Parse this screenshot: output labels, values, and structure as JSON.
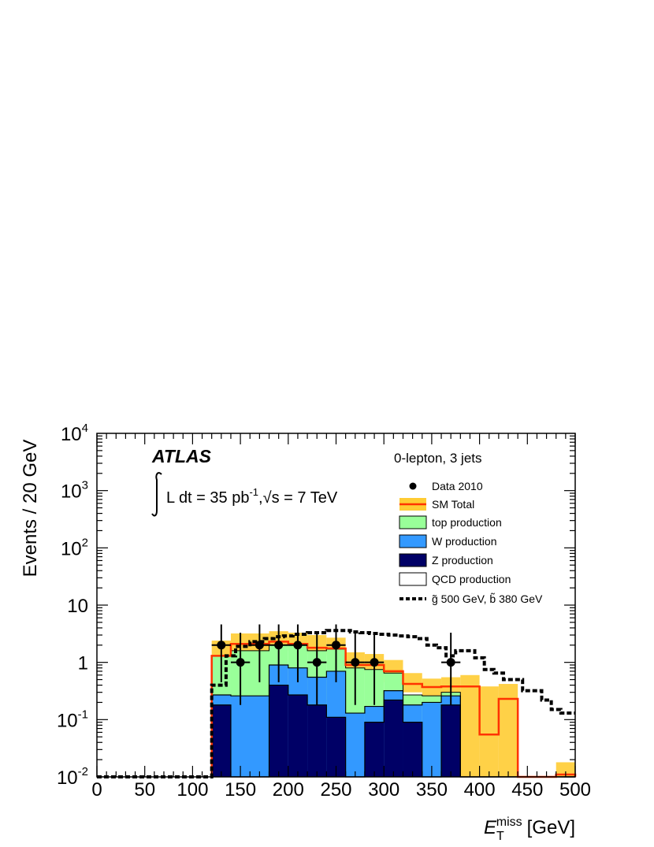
{
  "chart_data": {
    "type": "histogram",
    "x_axis": {
      "label_main": "E",
      "label_sub": "T",
      "label_sup": "miss",
      "label_unit": "[GeV]",
      "range": [
        0,
        500
      ],
      "tick_labels": [
        "0",
        "50",
        "100",
        "150",
        "200",
        "250",
        "300",
        "350",
        "400",
        "450",
        "500"
      ]
    },
    "y_axis": {
      "label": "Events / 20 GeV",
      "scale": "log",
      "range": [
        0.01,
        10000
      ],
      "tick_labels": [
        {
          "value": 0.01,
          "base": "10",
          "sup": "-2"
        },
        {
          "value": 0.1,
          "base": "10",
          "sup": "-1"
        },
        {
          "value": 1,
          "base": "1",
          "sup": ""
        },
        {
          "value": 10,
          "base": "10",
          "sup": ""
        },
        {
          "value": 100,
          "base": "10",
          "sup": "2"
        },
        {
          "value": 1000,
          "base": "10",
          "sup": "3"
        },
        {
          "value": 10000,
          "base": "10",
          "sup": "4"
        }
      ]
    },
    "annotations": {
      "experiment": "ATLAS",
      "lumi_text": "L dt = 35 pb",
      "lumi_sup": "-1",
      "energy_text": "s = 7 TeV",
      "channel": "0-lepton, 3 jets"
    },
    "legend": {
      "placement": "top-right",
      "entries": [
        {
          "key": "data",
          "label": "Data 2010"
        },
        {
          "key": "sm",
          "label": "SM Total"
        },
        {
          "key": "top",
          "label": "top production"
        },
        {
          "key": "w",
          "label": "W production"
        },
        {
          "key": "z",
          "label": "Z production"
        },
        {
          "key": "qcd",
          "label": "QCD production"
        },
        {
          "key": "signal",
          "label": "g̃ 500 GeV, b̃ 380 GeV"
        }
      ]
    },
    "bin_width": 20,
    "bin_edges": [
      120,
      140,
      180,
      200,
      220,
      240,
      260,
      280,
      300,
      320,
      340,
      360,
      380,
      400,
      420,
      440,
      480,
      500
    ],
    "series": [
      {
        "name": "Z production",
        "key": "z",
        "color": "#000066",
        "values": [
          0.18,
          0.01,
          0.4,
          0.27,
          0.18,
          0.11,
          0.01,
          0.09,
          0.22,
          0.09,
          0.01,
          0.18,
          0.01,
          0.01,
          0.01,
          0.01,
          0.01
        ]
      },
      {
        "name": "W production",
        "key": "w",
        "color": "#3399ff",
        "values": [
          0.27,
          0.26,
          0.9,
          0.8,
          0.55,
          0.7,
          0.13,
          0.17,
          0.32,
          0.18,
          0.2,
          0.26,
          0.01,
          0.01,
          0.01,
          0.01,
          0.01
        ]
      },
      {
        "name": "top production",
        "key": "top",
        "color": "#99ff99",
        "values": [
          1.3,
          1.6,
          2.0,
          2.0,
          1.6,
          1.7,
          0.8,
          0.75,
          0.65,
          0.27,
          0.26,
          0.3,
          0.01,
          0.01,
          0.01,
          0.01,
          0.01
        ]
      },
      {
        "name": "SM Total",
        "key": "sm",
        "color": "#ff3300",
        "values": [
          1.3,
          2.1,
          2.3,
          2.1,
          1.8,
          1.75,
          0.9,
          0.9,
          0.7,
          0.42,
          0.37,
          0.38,
          0.38,
          0.055,
          0.23,
          0.01,
          0.011
        ],
        "band_low": [
          1.0,
          1.6,
          1.8,
          1.6,
          1.4,
          1.3,
          0.65,
          0.6,
          0.45,
          0.3,
          0.26,
          0.28,
          0.01,
          0.01,
          0.01,
          0.01,
          0.01
        ],
        "band_high": [
          2.4,
          3.2,
          3.5,
          3.3,
          3.0,
          2.7,
          1.5,
          1.4,
          1.1,
          0.65,
          0.52,
          0.55,
          0.6,
          0.38,
          0.42,
          0.01,
          0.018
        ]
      },
      {
        "name": "g̃ 500 GeV, b̃ 380 GeV",
        "key": "signal",
        "color": "#000000",
        "edges": [
          0,
          120,
          125,
          135,
          145,
          160,
          175,
          185,
          195,
          205,
          220,
          240,
          255,
          265,
          275,
          285,
          295,
          305,
          315,
          325,
          335,
          345,
          355,
          365,
          375,
          385,
          395,
          405,
          415,
          425,
          435,
          445,
          455,
          465,
          475,
          485,
          500
        ],
        "values": [
          0.01,
          0.4,
          0.4,
          1.3,
          1.9,
          2.3,
          2.6,
          2.8,
          2.9,
          3.1,
          3.3,
          3.6,
          3.6,
          3.4,
          3.3,
          3.2,
          3.1,
          3.0,
          2.9,
          2.8,
          2.6,
          2.0,
          1.8,
          1.3,
          1.6,
          1.6,
          1.2,
          0.75,
          0.65,
          0.5,
          0.5,
          0.32,
          0.32,
          0.22,
          0.15,
          0.13
        ]
      }
    ],
    "data_points": {
      "name": "Data 2010",
      "x": [
        130,
        150,
        170,
        190,
        210,
        230,
        250,
        270,
        290,
        370
      ],
      "y": [
        2,
        1,
        2,
        2,
        2,
        1,
        2,
        1,
        1,
        1
      ],
      "ylow": [
        0.45,
        0.18,
        0.45,
        0.45,
        0.45,
        0.18,
        0.45,
        0.18,
        0.18,
        0.18
      ],
      "yhigh": [
        4.6,
        3.3,
        4.6,
        4.6,
        4.6,
        3.3,
        4.6,
        3.3,
        3.3,
        3.3
      ]
    }
  }
}
